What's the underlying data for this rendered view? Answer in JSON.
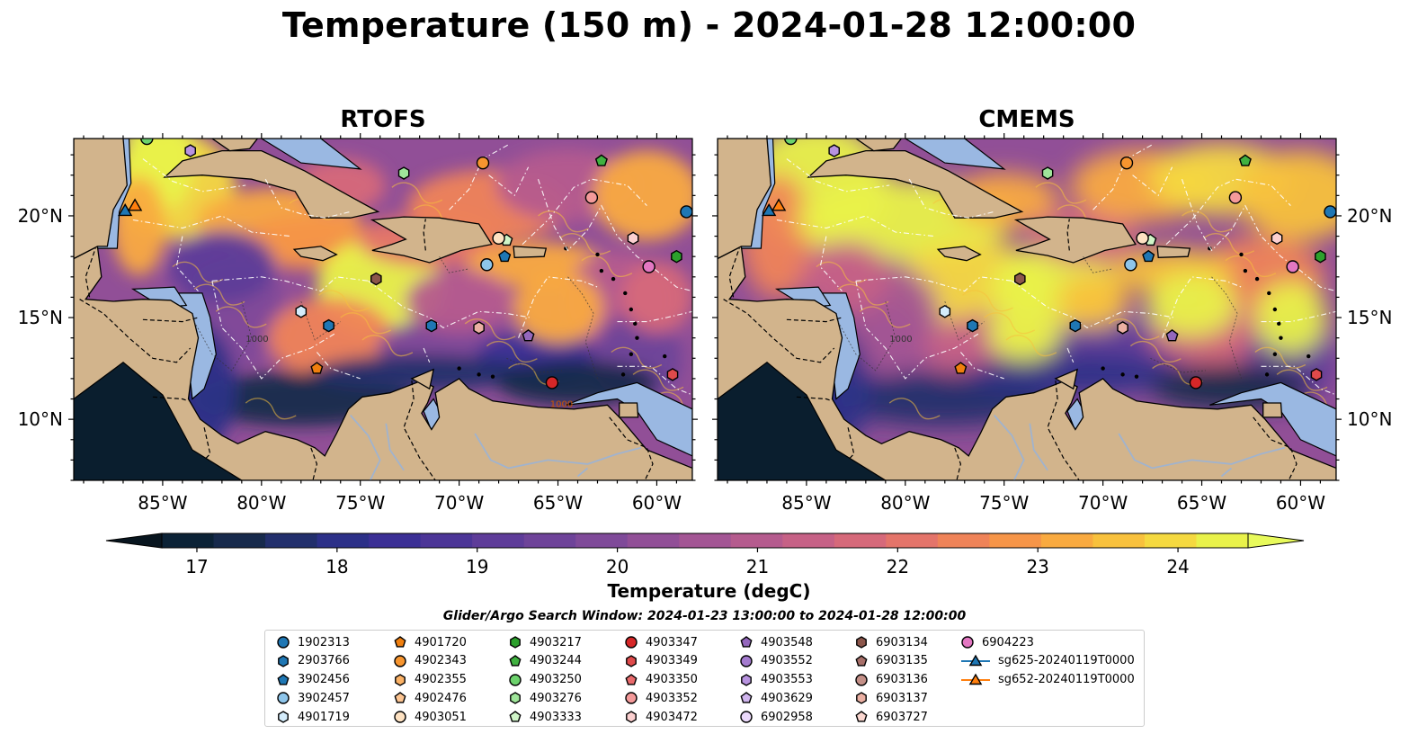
{
  "title": "Temperature (150 m) - 2024-01-28 12:00:00",
  "panels": [
    {
      "title": "RTOFS"
    },
    {
      "title": "CMEMS"
    }
  ],
  "axes": {
    "x_ticks": [
      "85°W",
      "80°W",
      "75°W",
      "70°W",
      "65°W",
      "60°W"
    ],
    "y_ticks": [
      "20°N",
      "15°N",
      "10°N"
    ],
    "lon_range": [
      -89.5,
      -58.2
    ],
    "lat_range": [
      7.0,
      23.8
    ],
    "contour_labels": [
      "1000",
      "1000"
    ]
  },
  "colorbar": {
    "label": "Temperature (degC)",
    "ticks": [
      "17",
      "18",
      "19",
      "20",
      "21",
      "22",
      "23",
      "24"
    ],
    "range": [
      16.75,
      24.5
    ],
    "extend": "both",
    "colormap": "thermal",
    "colors": [
      "#0b2236",
      "#172a4c",
      "#222f6c",
      "#2c3088",
      "#3b2f95",
      "#4c3597",
      "#5e3c99",
      "#6e4399",
      "#7f4a99",
      "#914f97",
      "#a35594",
      "#b55b8e",
      "#c66186",
      "#d6697a",
      "#e4746a",
      "#ef8358",
      "#f69548",
      "#f9aa40",
      "#f8c13d",
      "#f5d940",
      "#e9f24a"
    ],
    "extend_low_color": "#08151f",
    "extend_high_color": "#e8fa5b"
  },
  "legend": {
    "title": "Glider/Argo Search Window: 2024-01-23 13:00:00 to 2024-01-28 12:00:00",
    "items": [
      {
        "label": "1902313",
        "marker": "circle",
        "color": "#1f77b4"
      },
      {
        "label": "2903766",
        "marker": "hexagon",
        "color": "#1f77b4"
      },
      {
        "label": "3902456",
        "marker": "pentagon",
        "color": "#1f77b4"
      },
      {
        "label": "3902457",
        "marker": "circle",
        "color": "#8ec5ea"
      },
      {
        "label": "4901719",
        "marker": "hexagon",
        "color": "#d4ecfb"
      },
      {
        "label": "4901720",
        "marker": "pentagon",
        "color": "#f07f0e"
      },
      {
        "label": "4902343",
        "marker": "circle",
        "color": "#f7952f"
      },
      {
        "label": "4902355",
        "marker": "hexagon",
        "color": "#fbb266"
      },
      {
        "label": "4902476",
        "marker": "pentagon",
        "color": "#fdc592"
      },
      {
        "label": "4903051",
        "marker": "circle",
        "color": "#fee2c2"
      },
      {
        "label": "4903217",
        "marker": "hexagon",
        "color": "#2ca02c"
      },
      {
        "label": "4903244",
        "marker": "pentagon",
        "color": "#40b140"
      },
      {
        "label": "4903250",
        "marker": "circle",
        "color": "#6cd26c"
      },
      {
        "label": "4903276",
        "marker": "hexagon",
        "color": "#9fe59a"
      },
      {
        "label": "4903333",
        "marker": "pentagon",
        "color": "#d0f5c8"
      },
      {
        "label": "4903347",
        "marker": "circle",
        "color": "#d62728"
      },
      {
        "label": "4903349",
        "marker": "hexagon",
        "color": "#df4a4b"
      },
      {
        "label": "4903350",
        "marker": "pentagon",
        "color": "#e96a6c"
      },
      {
        "label": "4903352",
        "marker": "circle",
        "color": "#f49a9a"
      },
      {
        "label": "4903472",
        "marker": "hexagon",
        "color": "#fcd0d0"
      },
      {
        "label": "4903548",
        "marker": "pentagon",
        "color": "#9467bd"
      },
      {
        "label": "4903552",
        "marker": "circle",
        "color": "#a47bcf"
      },
      {
        "label": "4903553",
        "marker": "hexagon",
        "color": "#b893e0"
      },
      {
        "label": "4903629",
        "marker": "pentagon",
        "color": "#d0b5ee"
      },
      {
        "label": "6902958",
        "marker": "circle",
        "color": "#ebd9fb"
      },
      {
        "label": "6903134",
        "marker": "hexagon",
        "color": "#8c564b"
      },
      {
        "label": "6903135",
        "marker": "pentagon",
        "color": "#a8706a"
      },
      {
        "label": "6903136",
        "marker": "circle",
        "color": "#c49088"
      },
      {
        "label": "6903137",
        "marker": "hexagon",
        "color": "#ebb0a3"
      },
      {
        "label": "6903727",
        "marker": "pentagon",
        "color": "#fbd7d0"
      },
      {
        "label": "6904223",
        "marker": "circle",
        "color": "#e377c2"
      },
      {
        "label": "sg625-20240119T0000",
        "marker": "triangle-line",
        "color": "#1f77b4"
      },
      {
        "label": "sg652-20240119T0000",
        "marker": "triangle-line",
        "color": "#ff7f0e"
      }
    ]
  }
}
